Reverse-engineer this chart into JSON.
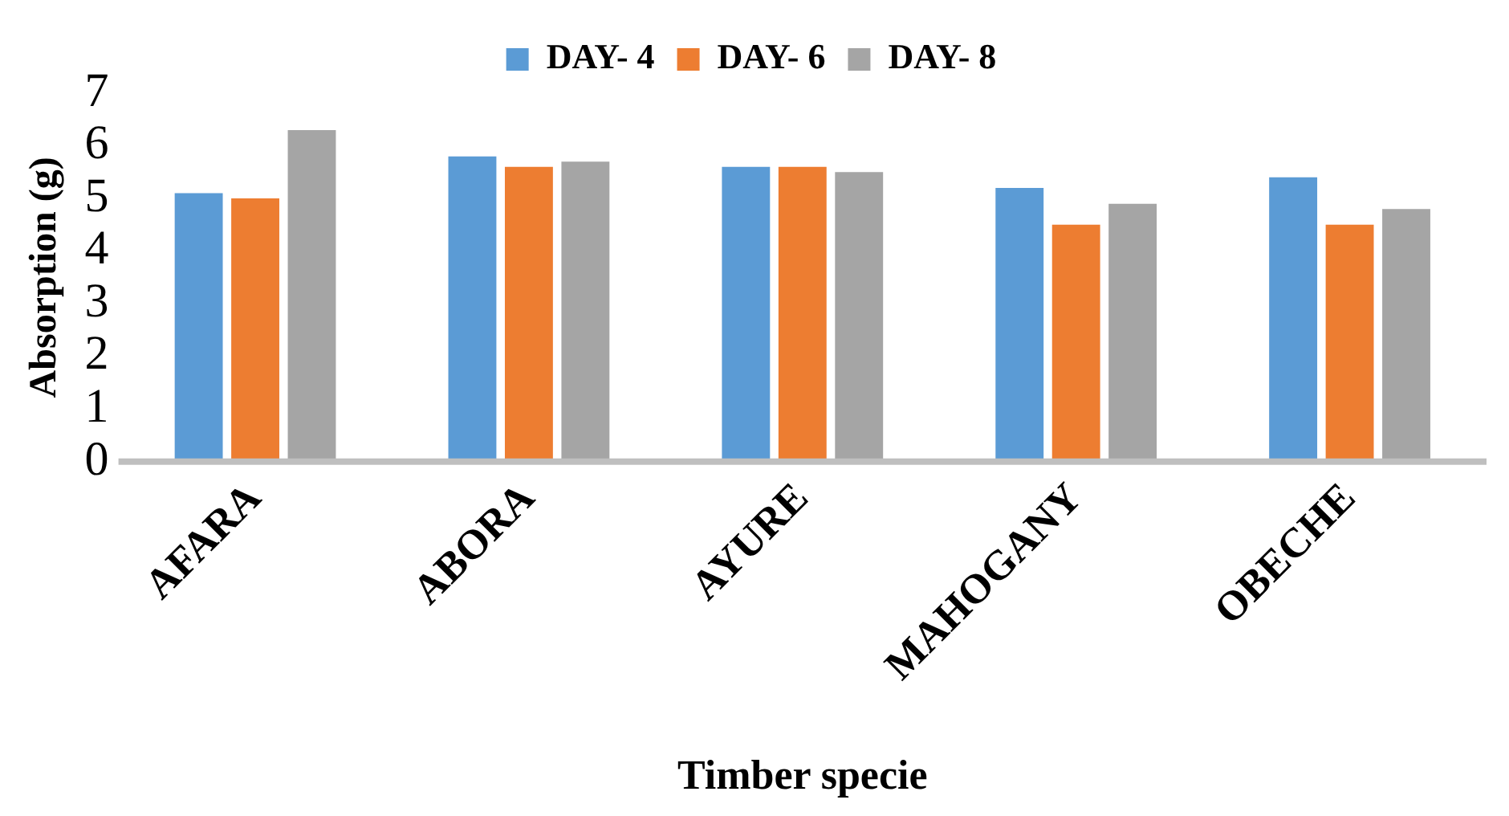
{
  "chart_data": {
    "type": "bar",
    "xlabel": "Timber specie",
    "ylabel": "Absorption (g)",
    "categories": [
      "AFARA",
      "ABORA",
      "AYURE",
      "MAHOGANY",
      "OBECHE"
    ],
    "series": [
      {
        "name": "DAY- 4",
        "color": "#5b9bd5",
        "values": [
          5.1,
          5.8,
          5.6,
          5.2,
          5.4
        ]
      },
      {
        "name": "DAY- 6",
        "color": "#ed7d31",
        "values": [
          5.0,
          5.6,
          5.6,
          4.5,
          4.5
        ]
      },
      {
        "name": "DAY- 8",
        "color": "#a5a5a5",
        "values": [
          6.3,
          5.7,
          5.5,
          4.9,
          4.8
        ]
      }
    ],
    "ylim": [
      0,
      7
    ],
    "yticks": [
      0,
      1,
      2,
      3,
      4,
      5,
      6,
      7
    ],
    "grid": false,
    "legend": "top"
  }
}
